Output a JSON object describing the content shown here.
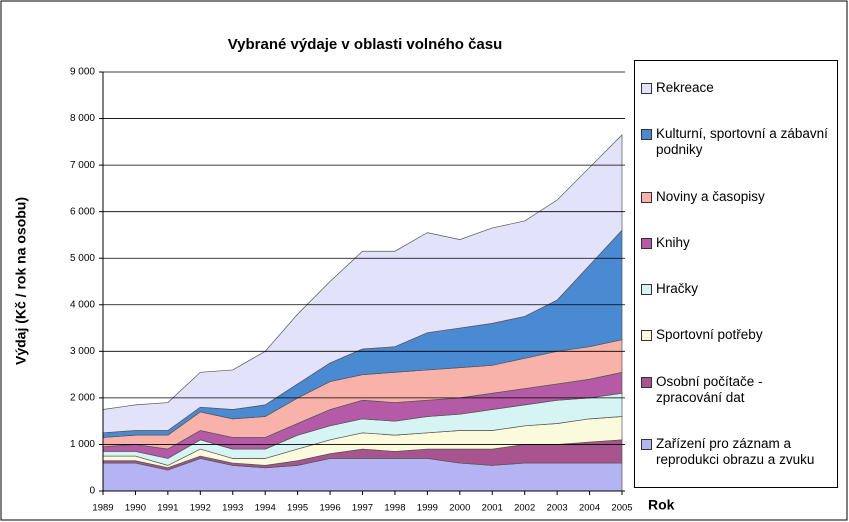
{
  "chart_data": {
    "type": "stacked_area",
    "title": "Vybrané výdaje v oblasti volného času",
    "ylabel": "Výdaj (Kč / rok na osobu)",
    "xlabel": "Rok",
    "categories": [
      "1989",
      "1990",
      "1991",
      "1992",
      "1993",
      "1994",
      "1995",
      "1996",
      "1997",
      "1998",
      "1999",
      "2000",
      "2001",
      "2002",
      "2003",
      "2004",
      "2005"
    ],
    "ylim": [
      0,
      9000
    ],
    "yticks": [
      0,
      {
        "value": 1000,
        "label": "1 000"
      },
      {
        "value": 2000,
        "label": "2 000"
      },
      {
        "value": 3000,
        "label": "3 000"
      },
      {
        "value": 4000,
        "label": "4 000"
      },
      {
        "value": 5000,
        "label": "5 000"
      },
      {
        "value": 6000,
        "label": "6 000"
      },
      {
        "value": 7000,
        "label": "7 000"
      },
      {
        "value": 8000,
        "label": "8 000"
      },
      {
        "value": 9000,
        "label": "9 000"
      }
    ],
    "grid": true,
    "legend": "right",
    "series": [
      {
        "name": "Zařízení pro záznam a reprodukci obrazu a zvuku",
        "color": "#b4b4f2",
        "values": [
          600,
          600,
          450,
          700,
          550,
          500,
          550,
          700,
          700,
          700,
          700,
          600,
          550,
          600,
          600,
          600,
          600
        ]
      },
      {
        "name": "Osobní počítače - zpracování dat",
        "color": "#a8548e",
        "values": [
          50,
          50,
          50,
          50,
          50,
          50,
          100,
          100,
          200,
          150,
          200,
          300,
          350,
          400,
          400,
          450,
          500
        ]
      },
      {
        "name": "Sportovní potřeby",
        "color": "#fafadc",
        "values": [
          100,
          100,
          50,
          150,
          100,
          150,
          250,
          300,
          350,
          350,
          350,
          400,
          400,
          400,
          450,
          500,
          500
        ]
      },
      {
        "name": "Hračky",
        "color": "#d6f4f4",
        "values": [
          100,
          100,
          150,
          200,
          200,
          200,
          300,
          300,
          300,
          300,
          350,
          350,
          450,
          450,
          500,
          450,
          500
        ]
      },
      {
        "name": "Knihy",
        "color": "#b45aa6",
        "values": [
          100,
          150,
          200,
          200,
          250,
          250,
          250,
          350,
          400,
          400,
          350,
          350,
          350,
          350,
          350,
          400,
          450
        ]
      },
      {
        "name": "Noviny a časopisy",
        "color": "#f8b2aa",
        "values": [
          200,
          200,
          300,
          400,
          400,
          450,
          550,
          600,
          550,
          650,
          650,
          650,
          600,
          650,
          700,
          700,
          700
        ]
      },
      {
        "name": "Kulturní, sportovní a zábavní podniky",
        "color": "#4a8ad2",
        "values": [
          100,
          100,
          100,
          100,
          200,
          250,
          300,
          400,
          550,
          550,
          800,
          850,
          900,
          900,
          1100,
          1750,
          2350
        ]
      },
      {
        "name": "Rekreace",
        "color": "#e2e2fa",
        "values": [
          500,
          550,
          600,
          750,
          850,
          1150,
          1500,
          1750,
          2100,
          2050,
          2150,
          1900,
          2050,
          2050,
          2150,
          2100,
          2050
        ]
      }
    ]
  }
}
